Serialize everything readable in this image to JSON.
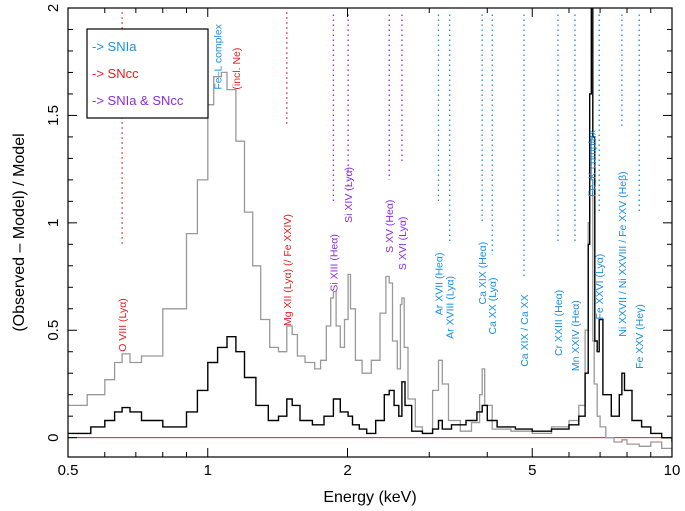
{
  "chart_data": {
    "type": "line",
    "xlabel": "Energy (keV)",
    "ylabel": "(Observed – Model) / Model",
    "xscale": "log",
    "xlim": [
      0.5,
      10
    ],
    "ylim": [
      -0.09,
      2
    ],
    "x_ticks": [
      0.5,
      1,
      2,
      5,
      10
    ],
    "x_tick_labels": [
      "0.5",
      "1",
      "2",
      "5",
      "10"
    ],
    "y_ticks": [
      0,
      0.5,
      1,
      1.5,
      2
    ],
    "y_tick_labels": [
      "0",
      "0.5",
      "1",
      "1.5",
      "2"
    ],
    "zero_line": 0,
    "colors": {
      "snia": "#1b8fe0",
      "sncc": "#e02020",
      "both": "#8a2be2",
      "series_black": "#000000",
      "series_gray": "#999999",
      "zero_line": "#e02020"
    },
    "legend": {
      "position": "top-left",
      "entries": [
        {
          "label": "-> SNIa",
          "color": "#1b8fe0"
        },
        {
          "label": "-> SNcc",
          "color": "#e02020"
        },
        {
          "label": "-> SNIa & SNcc",
          "color": "#8a2be2"
        }
      ]
    },
    "line_labels": [
      {
        "energy": 0.654,
        "label": "O VIII (Lyα)",
        "origin": "sncc",
        "label_y": 0.4,
        "dots_top": 1.98,
        "dots_bottom": 0.9
      },
      {
        "energy": 1.05,
        "label": "Fe–L complex",
        "origin": "snia",
        "label_y": 1.62,
        "dots_top": null,
        "dots_bottom": null
      },
      {
        "energy": 1.15,
        "label": "(incl. Ne)",
        "origin": "sncc",
        "label_y": 1.62,
        "dots_top": null,
        "dots_bottom": null
      },
      {
        "energy": 1.48,
        "label": "Mg XII (Lyα) (/ Fe XXIV)",
        "origin": "sncc",
        "label_y": 0.52,
        "dots_top": 1.98,
        "dots_bottom": 1.45
      },
      {
        "energy": 1.865,
        "label": "Si XIII (Heα)",
        "origin": "both",
        "label_y": 0.68,
        "dots_top": 1.97,
        "dots_bottom": 1.1
      },
      {
        "energy": 2.006,
        "label": "Si XIV (Lyα)",
        "origin": "both",
        "label_y": 1.0,
        "dots_top": 1.97,
        "dots_bottom": 1.15
      },
      {
        "energy": 2.46,
        "label": "S XV (Heα)",
        "origin": "both",
        "label_y": 0.86,
        "dots_top": 1.97,
        "dots_bottom": 1.2
      },
      {
        "energy": 2.62,
        "label": "S XVI (Lyα)",
        "origin": "both",
        "label_y": 0.78,
        "dots_top": 1.97,
        "dots_bottom": 1.28
      },
      {
        "energy": 3.14,
        "label": "Ar XVII (Heα)",
        "origin": "snia",
        "label_y": 0.57,
        "dots_top": 1.97,
        "dots_bottom": 1.1
      },
      {
        "energy": 3.32,
        "label": "Ar XVIII (Lyα)",
        "origin": "snia",
        "label_y": 0.46,
        "dots_top": 1.97,
        "dots_bottom": 0.9
      },
      {
        "energy": 3.9,
        "label": "Ca XIX (Heα)",
        "origin": "snia",
        "label_y": 0.62,
        "dots_top": 1.97,
        "dots_bottom": 1.0
      },
      {
        "energy": 4.1,
        "label": "Ca XX (Lyα)",
        "origin": "snia",
        "label_y": 0.48,
        "dots_top": 1.97,
        "dots_bottom": 0.85
      },
      {
        "energy": 4.8,
        "label": "Ca XIX / Ca XX",
        "origin": "snia",
        "label_y": 0.33,
        "dots_top": 1.97,
        "dots_bottom": 0.75
      },
      {
        "energy": 5.68,
        "label": "Cr XXIII (Heα)",
        "origin": "snia",
        "label_y": 0.38,
        "dots_top": 1.97,
        "dots_bottom": 0.9
      },
      {
        "energy": 6.18,
        "label": "Mn XXIV (Heα)",
        "origin": "snia",
        "label_y": 0.31,
        "dots_top": 1.97,
        "dots_bottom": 0.9
      },
      {
        "energy": 6.7,
        "label": "Fe–K complex",
        "origin": "snia",
        "label_y": 1.12,
        "dots_top": null,
        "dots_bottom": null
      },
      {
        "energy": 6.97,
        "label": "Fe XXVI (Lyα)",
        "origin": "snia",
        "label_y": 0.55,
        "dots_top": 1.97,
        "dots_bottom": 1.05
      },
      {
        "energy": 7.8,
        "label": "Ni XXVII / Ni XXVIII / Fe XXV (Heβ)",
        "origin": "snia",
        "label_y": 0.47,
        "dots_top": 1.97,
        "dots_bottom": 1.45
      },
      {
        "energy": 8.5,
        "label": "Fe XXV (Heγ)",
        "origin": "snia",
        "label_y": 0.32,
        "dots_top": 1.97,
        "dots_bottom": 1.05
      }
    ],
    "series": [
      {
        "color": "#999999",
        "x": [
          0.5,
          0.55,
          0.6,
          0.63,
          0.654,
          0.68,
          0.72,
          0.8,
          0.9,
          0.95,
          1.0,
          1.03,
          1.07,
          1.1,
          1.15,
          1.2,
          1.25,
          1.3,
          1.36,
          1.42,
          1.48,
          1.52,
          1.56,
          1.62,
          1.7,
          1.75,
          1.8,
          1.84,
          1.865,
          1.89,
          1.93,
          1.97,
          2.006,
          2.03,
          2.08,
          2.15,
          2.25,
          2.35,
          2.42,
          2.46,
          2.5,
          2.56,
          2.6,
          2.62,
          2.65,
          2.7,
          2.8,
          2.9,
          3.05,
          3.14,
          3.2,
          3.3,
          3.5,
          3.7,
          3.85,
          3.9,
          3.95,
          4.1,
          4.5,
          5.0,
          5.5,
          6.0,
          6.3,
          6.5,
          6.6,
          6.65,
          6.7,
          6.75,
          6.8,
          6.9,
          7.0,
          7.2,
          7.5,
          7.8,
          8.0,
          8.5,
          9.0,
          9.5,
          10.0
        ],
        "y": [
          0.15,
          0.2,
          0.27,
          0.35,
          0.39,
          0.35,
          0.38,
          0.6,
          0.95,
          1.2,
          1.55,
          1.68,
          1.7,
          1.62,
          1.38,
          1.05,
          0.8,
          0.55,
          0.42,
          0.4,
          0.52,
          0.48,
          0.38,
          0.35,
          0.32,
          0.36,
          0.52,
          0.65,
          0.68,
          0.52,
          0.42,
          0.55,
          0.76,
          0.6,
          0.36,
          0.3,
          0.36,
          0.58,
          0.75,
          0.72,
          0.45,
          0.32,
          0.62,
          0.65,
          0.42,
          0.18,
          0.05,
          0.02,
          0.22,
          0.36,
          0.25,
          0.08,
          0.03,
          0.07,
          0.2,
          0.32,
          0.15,
          0.04,
          0.03,
          0.02,
          0.05,
          0.08,
          0.15,
          0.5,
          1.0,
          1.4,
          1.2,
          0.45,
          0.25,
          0.1,
          0.05,
          0.0,
          -0.02,
          -0.01,
          -0.03,
          -0.04,
          -0.02,
          -0.05,
          -0.08
        ]
      },
      {
        "color": "#000000",
        "x": [
          0.5,
          0.56,
          0.6,
          0.63,
          0.654,
          0.68,
          0.72,
          0.8,
          0.9,
          0.95,
          1.0,
          1.05,
          1.1,
          1.15,
          1.2,
          1.27,
          1.35,
          1.42,
          1.48,
          1.52,
          1.58,
          1.68,
          1.78,
          1.865,
          1.93,
          2.006,
          2.05,
          2.12,
          2.2,
          2.3,
          2.4,
          2.46,
          2.52,
          2.58,
          2.62,
          2.66,
          2.75,
          2.9,
          3.05,
          3.14,
          3.2,
          3.35,
          3.6,
          3.8,
          3.9,
          4.0,
          4.2,
          4.6,
          5.0,
          5.5,
          6.0,
          6.3,
          6.5,
          6.6,
          6.65,
          6.7,
          6.75,
          6.82,
          6.9,
          6.97,
          7.1,
          7.4,
          7.7,
          7.8,
          7.9,
          8.2,
          8.6,
          9.0,
          9.5,
          10.0
        ],
        "y": [
          0.02,
          0.05,
          0.08,
          0.12,
          0.14,
          0.12,
          0.08,
          0.05,
          0.12,
          0.22,
          0.35,
          0.42,
          0.47,
          0.4,
          0.28,
          0.15,
          0.08,
          0.1,
          0.18,
          0.15,
          0.08,
          0.06,
          0.1,
          0.18,
          0.12,
          0.1,
          0.06,
          0.04,
          0.02,
          0.08,
          0.2,
          0.22,
          0.15,
          0.1,
          0.26,
          0.15,
          0.03,
          0.02,
          0.04,
          0.08,
          0.04,
          0.06,
          0.08,
          0.12,
          0.15,
          0.08,
          0.05,
          0.04,
          0.03,
          0.04,
          0.06,
          0.1,
          0.3,
          0.9,
          1.6,
          2.0,
          1.4,
          0.45,
          0.4,
          0.55,
          0.2,
          0.1,
          0.2,
          0.3,
          0.22,
          0.08,
          0.05,
          0.02,
          0.0,
          -0.02
        ]
      }
    ]
  }
}
